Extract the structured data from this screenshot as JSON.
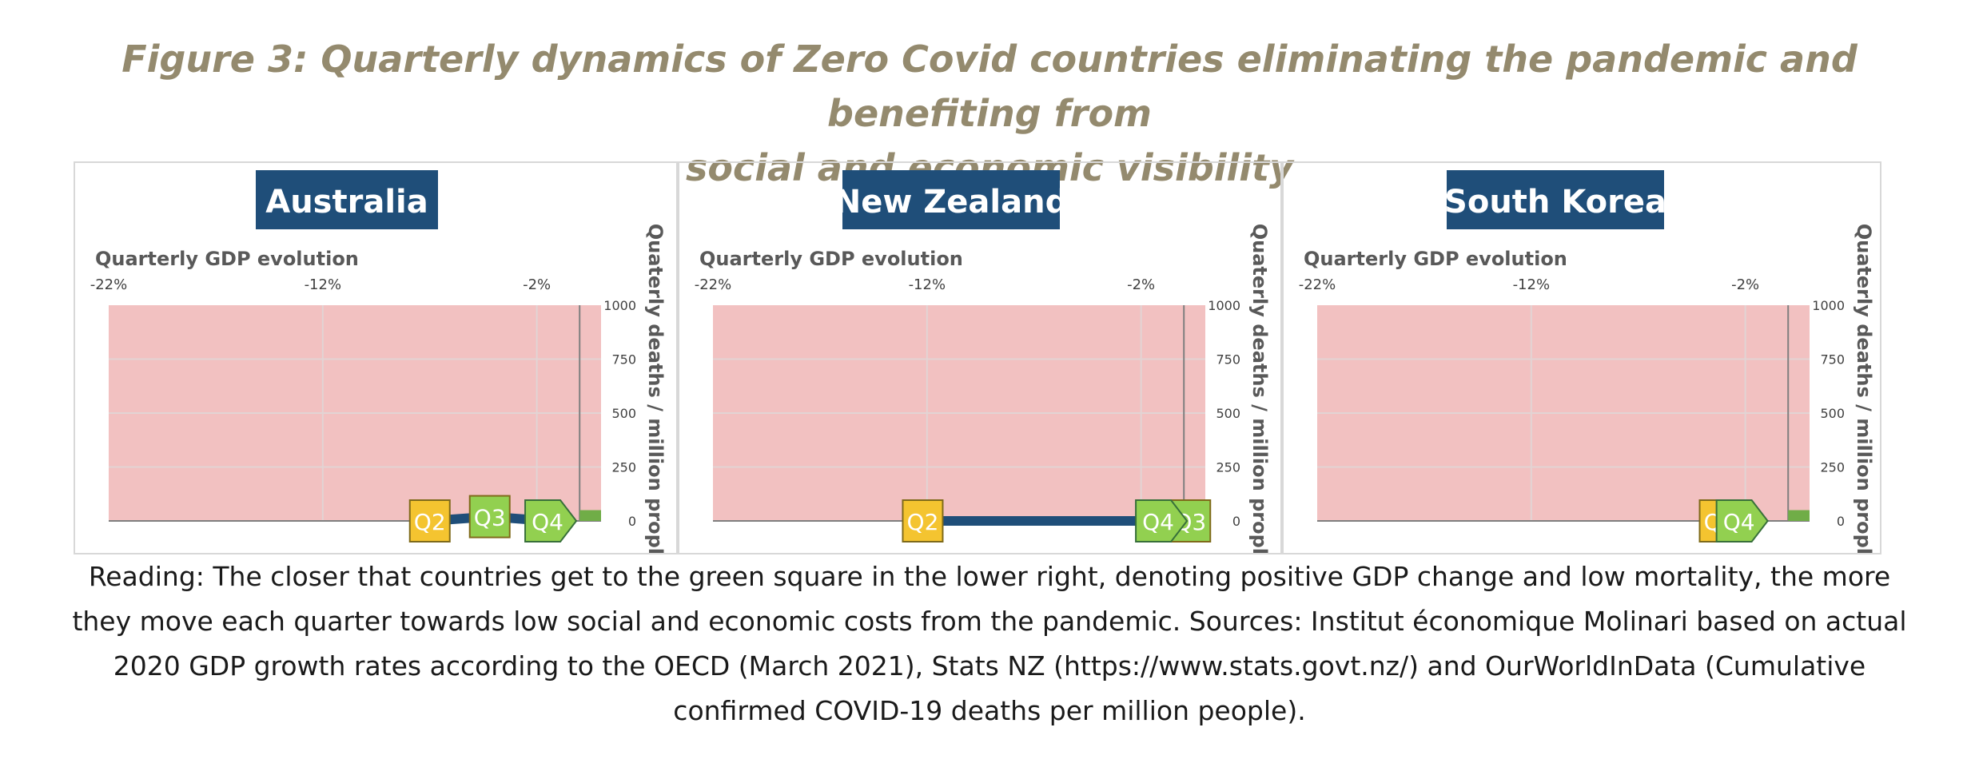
{
  "figure": {
    "title_line1": "Figure 3: Quarterly dynamics of Zero Covid countries eliminating the pandemic and benefiting from",
    "title_line2": "social and economic visibility"
  },
  "caption": {
    "line1": "Reading: The closer that countries get to the green square in the lower right, denoting positive GDP change and low mortality, the more",
    "line2": "they move each quarter towards low social and economic costs from the pandemic. Sources: Institut économique Molinari based on actual",
    "line3": "2020 GDP growth rates according to the OECD (March 2021), Stats NZ (https://www.stats.govt.nz/) and OurWorldInData (Cumulative",
    "line4": "confirmed COVID-19 deaths per million people)."
  },
  "colors": {
    "title": "#948a6e",
    "country_label_bg": "#1f4e79",
    "plot_area": "#f2c1c1",
    "gridline": "#e2d4d4",
    "path": "#1f4e79",
    "green_zone": "#70ad47",
    "marker_q2": "#f4c430",
    "marker_q3": "#92d050",
    "marker_q4": "#92d050"
  },
  "chart_data": [
    {
      "type": "scatter",
      "title": "Australia",
      "xlabel": "Quarterly GDP evolution",
      "ylabel": "Quaterly deaths / million prople",
      "x_ticks": [
        "-22%",
        "-12%",
        "-2%"
      ],
      "y_ticks": [
        "1000",
        "750",
        "500",
        "250",
        "0"
      ],
      "xlim": [
        -22,
        1
      ],
      "ylim": [
        0,
        1000
      ],
      "x_grid": [
        -22,
        -12,
        -2
      ],
      "green_zone": {
        "xmin": 0,
        "xmax": 1,
        "ymin": 0,
        "ymax": 50
      },
      "points": [
        {
          "label": "Q2",
          "x": -7,
          "y": 0,
          "marker": "square"
        },
        {
          "label": "Q3",
          "x": -4.2,
          "y": 20,
          "marker": "square"
        },
        {
          "label": "Q4",
          "x": -1.5,
          "y": 0,
          "marker": "arrow"
        }
      ]
    },
    {
      "type": "scatter",
      "title": "New Zealand",
      "xlabel": "Quarterly GDP evolution",
      "ylabel": "Quaterly deaths / million prople",
      "x_ticks": [
        "-22%",
        "-12%",
        "-2%"
      ],
      "y_ticks": [
        "1000",
        "750",
        "500",
        "250",
        "0"
      ],
      "xlim": [
        -22,
        1
      ],
      "ylim": [
        0,
        1000
      ],
      "x_grid": [
        -22,
        -12,
        -2
      ],
      "green_zone": {
        "xmin": 0,
        "xmax": 1,
        "ymin": 0,
        "ymax": 50
      },
      "points": [
        {
          "label": "Q2",
          "x": -12.2,
          "y": 0,
          "marker": "square"
        },
        {
          "label": "Q3",
          "x": 0.3,
          "y": 0,
          "marker": "square"
        },
        {
          "label": "Q4",
          "x": -1.2,
          "y": 0,
          "marker": "arrow"
        }
      ]
    },
    {
      "type": "scatter",
      "title": "South Korea",
      "xlabel": "Quarterly GDP evolution",
      "ylabel": "Quaterly deaths / million prople",
      "x_ticks": [
        "-22%",
        "-12%",
        "-2%"
      ],
      "y_ticks": [
        "1000",
        "750",
        "500",
        "250",
        "0"
      ],
      "xlim": [
        -22,
        1
      ],
      "ylim": [
        0,
        1000
      ],
      "x_grid": [
        -22,
        -12,
        -2
      ],
      "green_zone": {
        "xmin": 0,
        "xmax": 1,
        "ymin": 0,
        "ymax": 50
      },
      "points": [
        {
          "label": "Q2",
          "x": -3.2,
          "y": 0,
          "marker": "square"
        },
        {
          "label": "Q4",
          "x": -2.3,
          "y": 0,
          "marker": "arrow"
        }
      ]
    }
  ]
}
